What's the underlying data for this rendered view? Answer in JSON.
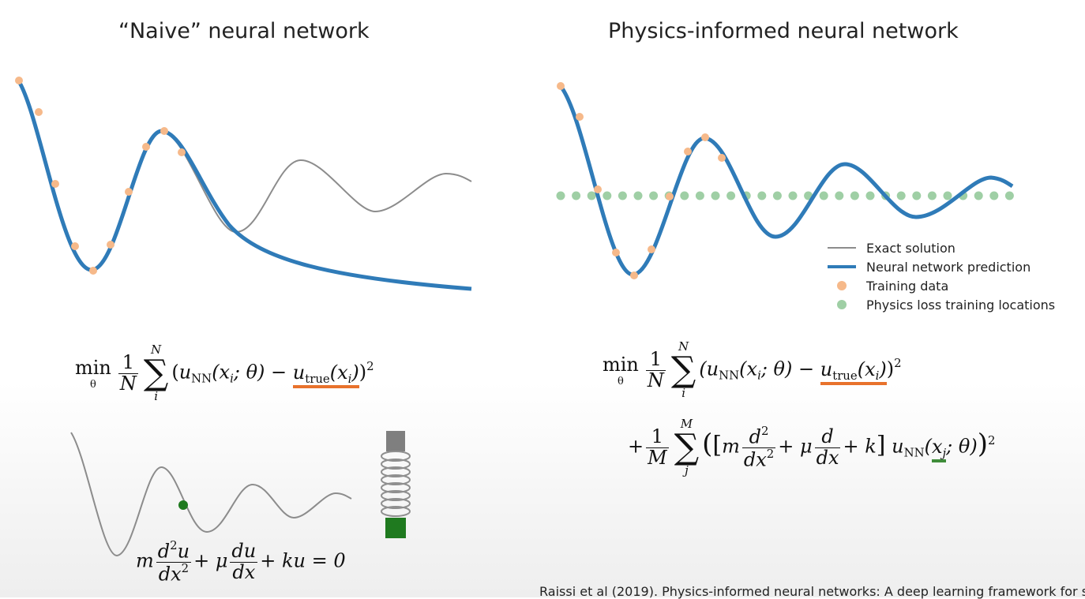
{
  "left_title": "“Naive” neural network",
  "right_title": "Physics-informed neural network",
  "legend": [
    {
      "label": "Exact solution",
      "color": "#8c8c8c"
    },
    {
      "label": "Neural network prediction",
      "color": "#2f7bb8"
    },
    {
      "label": "Training data",
      "color": "#f6b98a"
    },
    {
      "label": "Physics loss training locations",
      "color": "#9fcfa5"
    }
  ],
  "eq_naive": {
    "min": "min",
    "min_sub": "θ",
    "frac_num": "1",
    "frac_den": "N",
    "sum_top": "N",
    "sum_bot": "i",
    "open": "(",
    "u": "u",
    "nn": "NN",
    "args_i": "(x",
    "args_i_sub": "i",
    "args_theta": "; θ) −",
    "u2": "u",
    "true_sub": "true",
    "xi": "(x",
    "xi_sub": "i",
    "close": "))",
    "pow": "2"
  },
  "eq_pinn_line1": {
    "min": "min",
    "min_sub": "θ",
    "frac_num": "1",
    "frac_den": "N",
    "sum_top": "N",
    "sum_bot": "i",
    "u": "(u",
    "nn": "NN",
    "args_i": "(x",
    "args_i_sub": "i",
    "args_theta": "; θ) −",
    "u2": "u",
    "true_sub": "true",
    "xi": "(x",
    "xi_sub": "i",
    "close": "))",
    "pow": "2"
  },
  "eq_pinn_line2": {
    "plus": "+",
    "frac_num": "1",
    "frac_den": "M",
    "sum_top": "M",
    "sum_bot": "j",
    "lbr": "(",
    "lsq": "[",
    "m": "m",
    "d2_num": "d",
    "d2_num_sup": "2",
    "d2_den": "dx",
    "d2_den_sup": "2",
    "plus_mu": "+ μ",
    "d1_num": "d",
    "d1_den": "dx",
    "plus_k": "+ k",
    "rsq": "]",
    "u": "u",
    "nn": "NN",
    "xj": "(x",
    "xj_sub": "j",
    "theta": "; θ)",
    "rbr": ")",
    "pow": "2"
  },
  "ode": {
    "m": "m",
    "d2u_num": "d",
    "d2u_num_sup": "2",
    "d2u_num_u": "u",
    "d2u_den": "dx",
    "d2u_den_sup": "2",
    "plus_mu": "+ μ",
    "du_num": "du",
    "du_den": "dx",
    "rest": "+ ku = 0"
  },
  "citation": "Raissi et al (2019). Physics-informed neural networks: A deep learning framework for s"
}
